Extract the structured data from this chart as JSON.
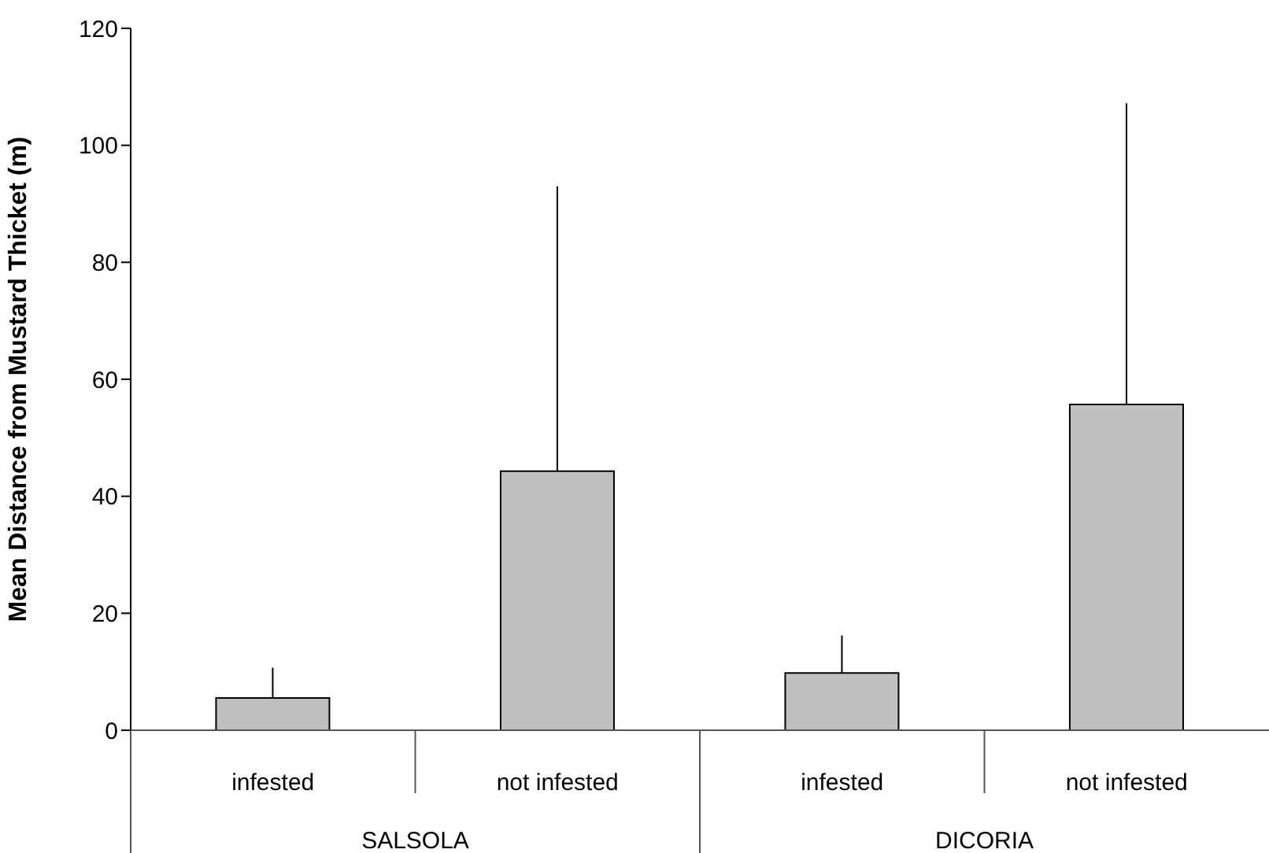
{
  "chart_data": {
    "type": "bar",
    "ylabel": "Mean Distance from Mustard Thicket (m)",
    "categories": [
      "infested",
      "not infested",
      "infested",
      "not infested"
    ],
    "values": [
      5.5,
      44.3,
      9.8,
      55.7
    ],
    "errors": [
      [
        5.5,
        10.7
      ],
      [
        44.3,
        93.0
      ],
      [
        9.8,
        16.2
      ],
      [
        55.7,
        107.2
      ]
    ],
    "color": "#c0c0c0",
    "ylim": [
      0,
      120
    ],
    "yticks": [
      0,
      20,
      40,
      60,
      80,
      100,
      120
    ],
    "annotations": [
      "SALSOLA",
      "DICORIA"
    ]
  }
}
